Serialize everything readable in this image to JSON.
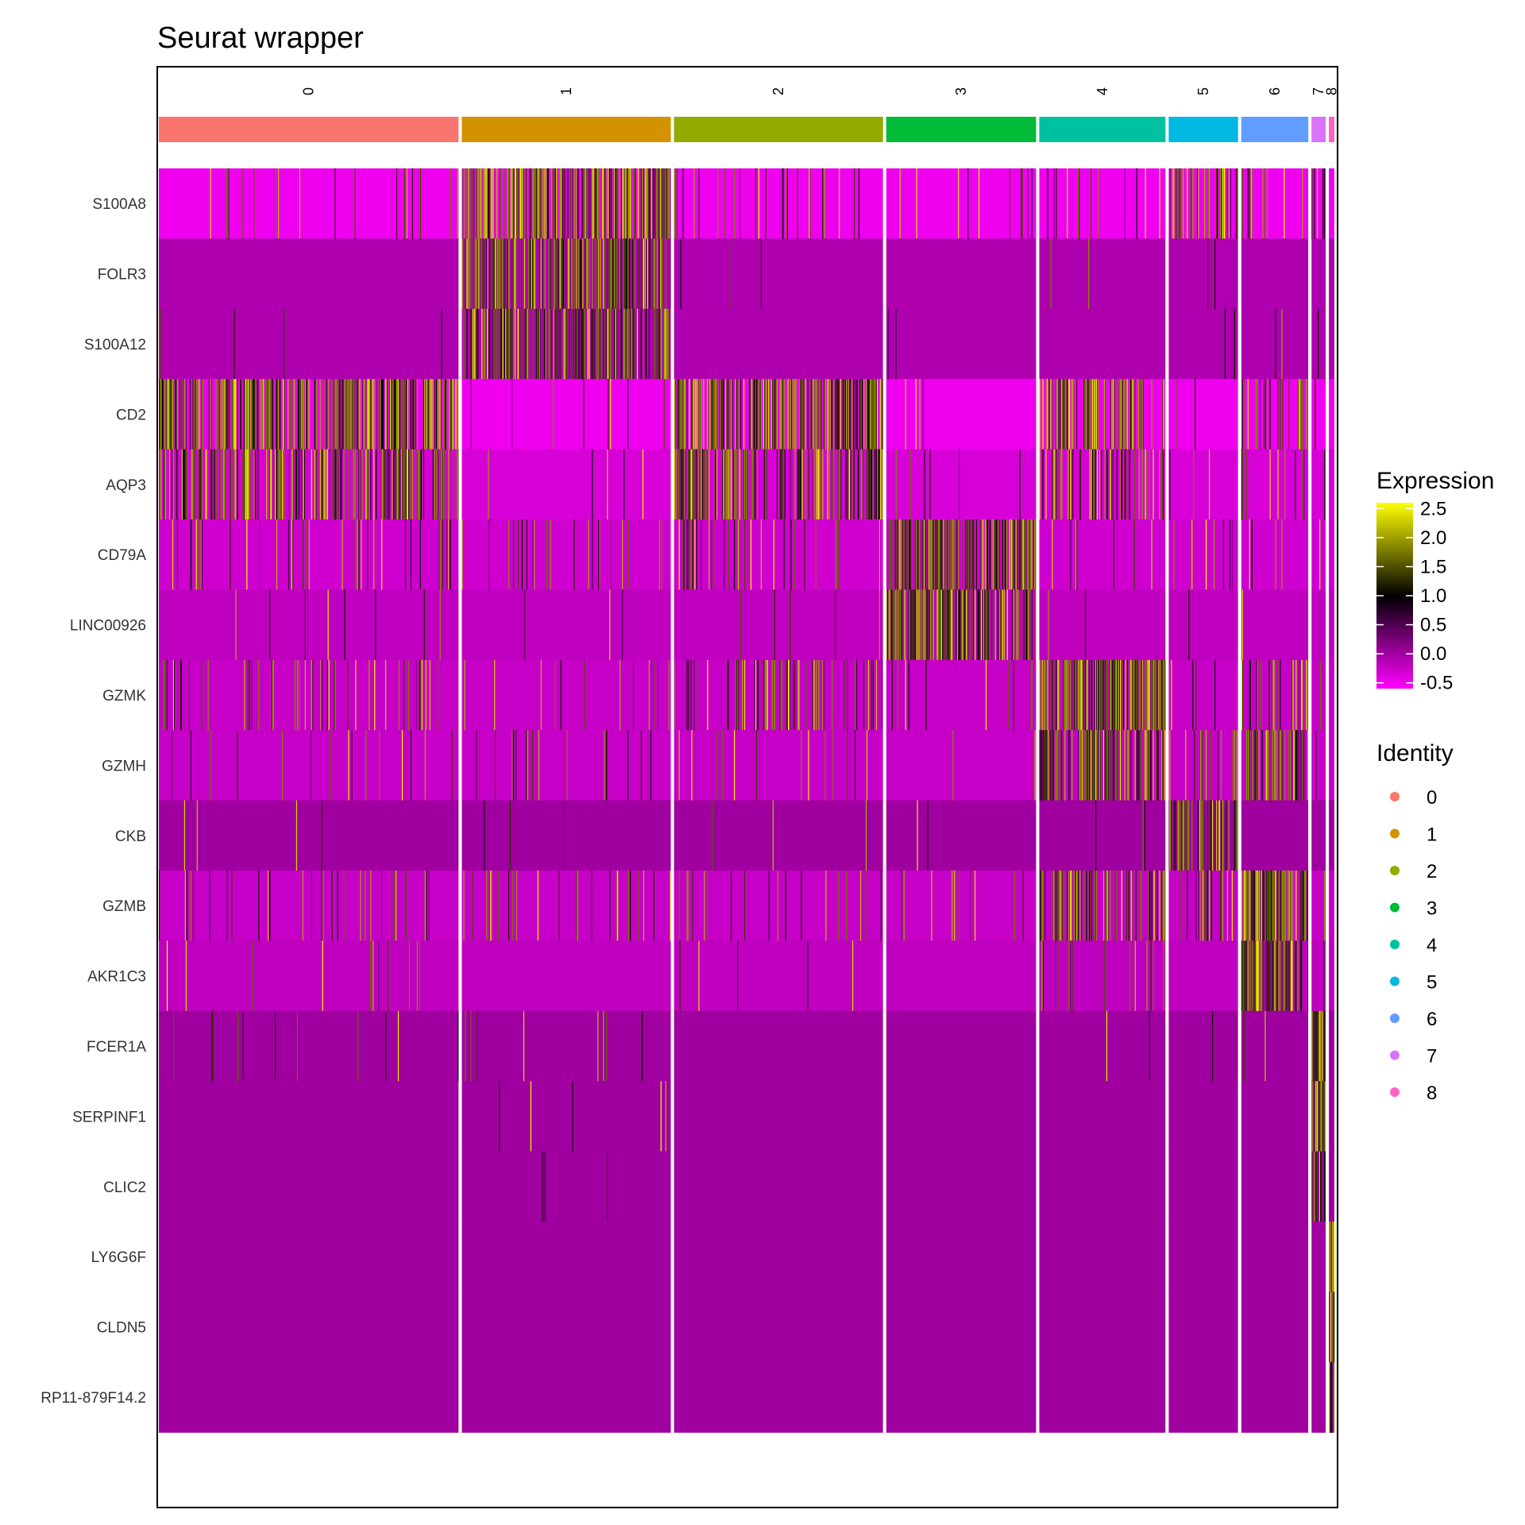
{
  "chart_data": {
    "type": "heatmap",
    "title": "Seurat wrapper",
    "clusters": [
      {
        "id": "0",
        "label": "0",
        "color": "#F8766D",
        "cells": 380
      },
      {
        "id": "1",
        "label": "1",
        "color": "#D39200",
        "cells": 265
      },
      {
        "id": "2",
        "label": "2",
        "color": "#93AA00",
        "cells": 265
      },
      {
        "id": "3",
        "label": "3",
        "color": "#00BA38",
        "cells": 190
      },
      {
        "id": "4",
        "label": "4",
        "color": "#00C19F",
        "cells": 160
      },
      {
        "id": "5",
        "label": "5",
        "color": "#00B9E3",
        "cells": 88
      },
      {
        "id": "6",
        "label": "6",
        "color": "#619CFF",
        "cells": 85
      },
      {
        "id": "7",
        "label": "7",
        "color": "#DB72FB",
        "cells": 18
      },
      {
        "id": "8",
        "label": "8",
        "color": "#FF61C3",
        "cells": 7
      }
    ],
    "genes": [
      "S100A8",
      "FOLR3",
      "S100A12",
      "CD2",
      "AQP3",
      "CD79A",
      "LINC00926",
      "GZMK",
      "GZMH",
      "CKB",
      "GZMB",
      "AKR1C3",
      "FCER1A",
      "SERPINF1",
      "CLIC2",
      "LY6G6F",
      "CLDN5",
      "RP11-879F14.2"
    ],
    "expression_fraction_high": [
      [
        0.05,
        0.95,
        0.1,
        0.05,
        0.08,
        0.45,
        0.12,
        0.4,
        0.0
      ],
      [
        0.0,
        0.7,
        0.01,
        0.0,
        0.01,
        0.02,
        0.0,
        0.0,
        0.0
      ],
      [
        0.01,
        0.65,
        0.0,
        0.01,
        0.0,
        0.03,
        0.02,
        0.05,
        0.0
      ],
      [
        0.8,
        0.03,
        0.85,
        0.02,
        0.6,
        0.02,
        0.25,
        0.05,
        0.0
      ],
      [
        0.55,
        0.02,
        0.6,
        0.03,
        0.35,
        0.03,
        0.1,
        0.05,
        0.0
      ],
      [
        0.1,
        0.08,
        0.12,
        0.95,
        0.05,
        0.1,
        0.05,
        0.05,
        0.0
      ],
      [
        0.02,
        0.01,
        0.02,
        0.85,
        0.01,
        0.01,
        0.01,
        0.0,
        0.0
      ],
      [
        0.12,
        0.05,
        0.25,
        0.05,
        0.95,
        0.05,
        0.3,
        0.05,
        0.0
      ],
      [
        0.04,
        0.06,
        0.05,
        0.01,
        0.85,
        0.15,
        0.75,
        0.05,
        0.0
      ],
      [
        0.01,
        0.01,
        0.01,
        0.01,
        0.02,
        0.7,
        0.0,
        0.0,
        0.0
      ],
      [
        0.08,
        0.1,
        0.08,
        0.05,
        0.55,
        0.2,
        1.0,
        0.05,
        0.0
      ],
      [
        0.03,
        0.0,
        0.02,
        0.0,
        0.1,
        0.0,
        0.8,
        0.05,
        0.0
      ],
      [
        0.03,
        0.03,
        0.0,
        0.0,
        0.01,
        0.01,
        0.03,
        0.9,
        0.0
      ],
      [
        0.0,
        0.02,
        0.0,
        0.0,
        0.0,
        0.0,
        0.0,
        0.8,
        0.0
      ],
      [
        0.0,
        0.01,
        0.0,
        0.0,
        0.0,
        0.0,
        0.0,
        0.7,
        0.0
      ],
      [
        0.0,
        0.0,
        0.0,
        0.0,
        0.0,
        0.0,
        0.0,
        0.0,
        1.0
      ],
      [
        0.0,
        0.0,
        0.0,
        0.0,
        0.0,
        0.0,
        0.0,
        0.0,
        0.8
      ],
      [
        0.0,
        0.0,
        0.0,
        0.0,
        0.0,
        0.0,
        0.0,
        0.0,
        0.7
      ]
    ],
    "base_expression": [
      -0.5,
      -0.1,
      -0.1,
      -0.5,
      -0.35,
      -0.3,
      -0.2,
      -0.25,
      -0.25,
      0.0,
      -0.25,
      -0.2,
      0.0,
      0.0,
      0.0,
      0.0,
      0.0,
      0.0
    ],
    "color_scale": {
      "title": "Expression",
      "breaks": [
        2.5,
        2.0,
        1.5,
        1.0,
        0.5,
        0.0,
        -0.5
      ],
      "break_labels": [
        "2.5",
        "2.0",
        "1.5",
        "1.0",
        "0.5",
        "0.0",
        "-0.5"
      ],
      "low_color": "#FF00FF",
      "mid_color": "#000000",
      "high_color": "#FFFF00",
      "range": [
        -0.6,
        2.6
      ]
    },
    "identity_legend": {
      "title": "Identity",
      "labels": [
        "0",
        "1",
        "2",
        "3",
        "4",
        "5",
        "6",
        "7",
        "8"
      ]
    }
  }
}
